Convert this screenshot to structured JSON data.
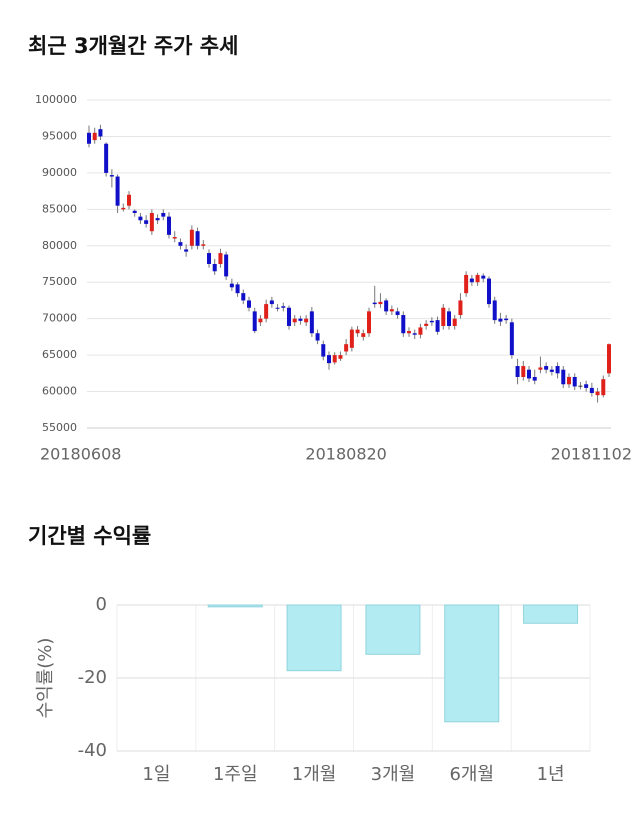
{
  "chart_data": [
    {
      "type": "candlestick",
      "title": "최근 3개월간 주가 추세",
      "categories": [
        "20180608",
        null,
        null,
        null,
        null,
        null,
        null,
        null,
        null,
        null,
        null,
        null,
        null,
        null,
        null,
        null,
        null,
        null,
        null,
        null,
        null,
        null,
        null,
        null,
        null,
        null,
        null,
        null,
        null,
        null,
        null,
        null,
        null,
        null,
        null,
        null,
        null,
        null,
        null,
        null,
        null,
        null,
        null,
        null,
        null,
        "20180820",
        null,
        null,
        null,
        null,
        null,
        null,
        null,
        null,
        null,
        null,
        null,
        null,
        null,
        null,
        null,
        null,
        null,
        null,
        null,
        null,
        null,
        null,
        null,
        null,
        null,
        null,
        null,
        null,
        null,
        null,
        null,
        null,
        null,
        null,
        null,
        null,
        null,
        null,
        null,
        null,
        null,
        null,
        null,
        null,
        null,
        "20181102"
      ],
      "open": [
        95500,
        94500,
        96000,
        94000,
        89700,
        89500,
        85000,
        85500,
        84800,
        84000,
        83500,
        82000,
        83800,
        84500,
        84000,
        81000,
        80500,
        79500,
        80000,
        82000,
        80000,
        79000,
        77500,
        77500,
        78800,
        74800,
        74700,
        73500,
        72500,
        71000,
        69500,
        70000,
        72500,
        71500,
        71700,
        71500,
        69500,
        70000,
        69500,
        71000,
        68000,
        66500,
        65000,
        64000,
        64500,
        65500,
        66000,
        68000,
        67500,
        68000,
        72200,
        72000,
        72500,
        71000,
        71000,
        70500,
        68000,
        68000,
        67800,
        69000,
        69700,
        69800,
        69000,
        71000,
        69000,
        70500,
        73500,
        75500,
        75000,
        75900,
        75500,
        72500,
        70000,
        70000,
        69500,
        63500,
        62000,
        63000,
        62000,
        63000,
        63500,
        63000,
        63500,
        63000,
        61000,
        62000,
        60800,
        61000,
        60500,
        59500,
        59500,
        62500
      ],
      "high": [
        96500,
        96200,
        96600,
        94200,
        90500,
        89800,
        85800,
        87500,
        85000,
        84500,
        84200,
        85000,
        84300,
        85000,
        84600,
        82000,
        81000,
        80200,
        82800,
        82500,
        80800,
        79500,
        78200,
        79600,
        79200,
        75500,
        75000,
        74000,
        73000,
        71500,
        70500,
        72600,
        73000,
        72000,
        72200,
        71800,
        70500,
        70400,
        70500,
        71600,
        68500,
        67000,
        65500,
        65400,
        65500,
        67200,
        68900,
        69000,
        68500,
        71500,
        74500,
        73500,
        72800,
        71800,
        71500,
        71000,
        68800,
        68500,
        69300,
        69800,
        70200,
        70300,
        72000,
        71500,
        70500,
        73500,
        76500,
        76000,
        76300,
        76200,
        75800,
        73000,
        70800,
        70500,
        70000,
        64500,
        64200,
        63500,
        63000,
        64800,
        64000,
        63500,
        64000,
        63500,
        62500,
        62500,
        61300,
        61500,
        61200,
        60500,
        62200,
        66600
      ],
      "low": [
        93500,
        94000,
        94500,
        89500,
        88000,
        84500,
        84700,
        85000,
        84000,
        83000,
        82500,
        81500,
        83000,
        83500,
        81000,
        80500,
        79500,
        78500,
        79500,
        79500,
        79500,
        77000,
        76000,
        77000,
        75300,
        73800,
        73000,
        72000,
        71000,
        68000,
        69000,
        69500,
        71500,
        71000,
        71000,
        68500,
        69000,
        69200,
        69000,
        67500,
        66500,
        64300,
        63000,
        63700,
        64200,
        65000,
        65500,
        67500,
        67000,
        67500,
        71500,
        71500,
        70500,
        70500,
        70000,
        67500,
        67500,
        67200,
        67300,
        68500,
        69000,
        67800,
        68500,
        68500,
        68500,
        70000,
        73000,
        74500,
        74500,
        75000,
        71500,
        69300,
        69000,
        69300,
        64500,
        61000,
        61500,
        61300,
        61000,
        62500,
        62500,
        62200,
        61800,
        60500,
        60500,
        60200,
        60300,
        60000,
        59300,
        58500,
        59200,
        62000
      ],
      "close": [
        94000,
        95500,
        95000,
        90000,
        89500,
        85500,
        85200,
        87000,
        84500,
        83500,
        83000,
        84500,
        83500,
        84000,
        81500,
        81200,
        80000,
        79200,
        82200,
        80000,
        80200,
        77500,
        76500,
        79000,
        75800,
        74300,
        73500,
        72500,
        71500,
        68300,
        70000,
        72000,
        72000,
        71400,
        71500,
        69000,
        70000,
        69700,
        70000,
        68000,
        67000,
        64800,
        63900,
        65000,
        65000,
        66500,
        68500,
        68500,
        68000,
        71000,
        72000,
        72300,
        71000,
        71300,
        70500,
        68000,
        68300,
        67800,
        68800,
        69300,
        69500,
        68200,
        71500,
        69000,
        70000,
        72500,
        76000,
        75000,
        76000,
        75500,
        72000,
        69800,
        69600,
        69800,
        65000,
        62000,
        63500,
        61800,
        61500,
        63300,
        63000,
        62700,
        62500,
        61000,
        62000,
        60700,
        60800,
        60500,
        59800,
        60000,
        61700,
        66500
      ],
      "up_color": "#e0201a",
      "down_color": "#1010c8",
      "ylim": [
        55000,
        100000
      ],
      "yticks": [
        55000,
        60000,
        65000,
        70000,
        75000,
        80000,
        85000,
        90000,
        95000,
        100000
      ],
      "grid": true
    },
    {
      "type": "bar",
      "title": "기간별 수익률",
      "ylabel": "수익률(%)",
      "categories": [
        "1일",
        "1주일",
        "1개월",
        "3개월",
        "6개월",
        "1년"
      ],
      "values": [
        0,
        -0.5,
        -18,
        -13.5,
        -32,
        -5
      ],
      "color": "#b3ebf2",
      "ylim": [
        -40,
        0
      ],
      "yticks": [
        0,
        -20,
        -40
      ],
      "grid": true
    }
  ]
}
